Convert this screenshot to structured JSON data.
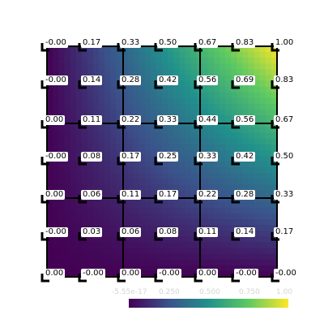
{
  "plot": {
    "type": "heatmap",
    "cell_labels": [
      [
        "-0.00",
        "0.17",
        "0.33",
        "0.50",
        "0.67",
        "0.83",
        "1.00"
      ],
      [
        "-0.00",
        "0.14",
        "0.28",
        "0.42",
        "0.56",
        "0.69",
        "0.83"
      ],
      [
        "0.00",
        "0.11",
        "0.22",
        "0.33",
        "0.44",
        "0.56",
        "0.67"
      ],
      [
        "-0.00",
        "0.08",
        "0.17",
        "0.25",
        "0.33",
        "0.42",
        "0.50"
      ],
      [
        "0.00",
        "0.06",
        "0.11",
        "0.17",
        "0.22",
        "0.28",
        "0.33"
      ],
      [
        "-0.00",
        "0.03",
        "0.06",
        "0.08",
        "0.11",
        "0.14",
        "0.17"
      ],
      [
        "0.00",
        "-0.00",
        "0.00",
        "-0.00",
        "0.00",
        "-0.00",
        "-0.00"
      ]
    ],
    "colormap": "viridis",
    "grid_lines": "on"
  },
  "colorbar": {
    "tick_labels": [
      "-5.55e-17",
      "0.250",
      "0.500",
      "0.750",
      "1.00"
    ],
    "range": [
      0,
      1
    ],
    "colors": [
      "#440154",
      "#3b528b",
      "#21918c",
      "#5ec962",
      "#fde725"
    ]
  }
}
